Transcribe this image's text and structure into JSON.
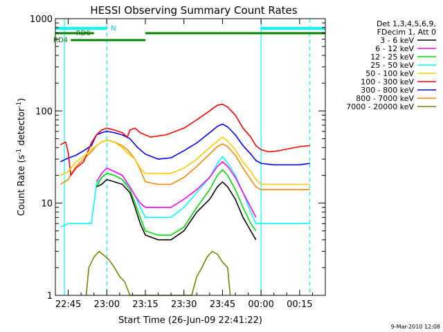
{
  "chart_data": {
    "type": "line",
    "title": "HESSI Observing Summary Count Rates",
    "xlabel": "Start Time (26-Jun-09 22:41:22)",
    "ylabel_main": "Count Rate (s",
    "ylabel_sup1": "-1",
    "ylabel_mid": " detector",
    "ylabel_sup2": "-1",
    "ylabel_end": ")",
    "y_scale": "log",
    "ylim": [
      1,
      1000
    ],
    "xlim_minutes": [
      -5,
      100
    ],
    "x_ticks": [
      {
        "t": 0,
        "label": "22:45"
      },
      {
        "t": 15,
        "label": "23:00"
      },
      {
        "t": 30,
        "label": "23:15"
      },
      {
        "t": 45,
        "label": "23:30"
      },
      {
        "t": 60,
        "label": "23:45"
      },
      {
        "t": 75,
        "label": "00:00"
      },
      {
        "t": 90,
        "label": "00:15"
      }
    ],
    "y_ticks": [
      {
        "v": 1,
        "label": "1"
      },
      {
        "v": 10,
        "label": "10"
      },
      {
        "v": 100,
        "label": "100"
      },
      {
        "v": 1000,
        "label": "1000"
      }
    ],
    "legend": {
      "header": [
        "Det 1,3,4,5,6,9,",
        "FDecim 1, Att 0"
      ],
      "position": "right"
    },
    "series": [
      {
        "name": "3 - 6 keV",
        "color": "#000000",
        "points": [
          [
            11,
            15
          ],
          [
            13,
            16
          ],
          [
            15,
            18
          ],
          [
            18,
            17
          ],
          [
            21,
            16
          ],
          [
            24,
            13
          ],
          [
            26,
            9
          ],
          [
            28,
            6
          ],
          [
            30,
            4.5
          ],
          [
            35,
            4
          ],
          [
            40,
            4
          ],
          [
            45,
            5
          ],
          [
            50,
            8
          ],
          [
            55,
            11
          ],
          [
            58,
            15
          ],
          [
            60,
            17
          ],
          [
            62,
            15
          ],
          [
            65,
            11
          ],
          [
            68,
            7
          ],
          [
            71,
            5
          ],
          [
            73,
            4
          ]
        ]
      },
      {
        "name": "6 - 12 keV",
        "color": "#ff00ff",
        "points": [
          [
            11,
            17
          ],
          [
            13,
            21
          ],
          [
            15,
            24
          ],
          [
            18,
            22
          ],
          [
            21,
            20
          ],
          [
            24,
            15
          ],
          [
            26,
            12
          ],
          [
            28,
            10
          ],
          [
            30,
            9
          ],
          [
            35,
            9
          ],
          [
            40,
            9
          ],
          [
            45,
            11
          ],
          [
            50,
            14
          ],
          [
            55,
            19
          ],
          [
            58,
            25
          ],
          [
            60,
            28
          ],
          [
            62,
            25
          ],
          [
            65,
            19
          ],
          [
            68,
            13
          ],
          [
            71,
            9
          ],
          [
            73,
            7
          ]
        ]
      },
      {
        "name": "12 - 25 keV",
        "color": "#00dd00",
        "points": [
          [
            11,
            15
          ],
          [
            13,
            19
          ],
          [
            15,
            21
          ],
          [
            18,
            20
          ],
          [
            21,
            18
          ],
          [
            24,
            14
          ],
          [
            26,
            10
          ],
          [
            28,
            7
          ],
          [
            30,
            5
          ],
          [
            35,
            4.5
          ],
          [
            40,
            4.5
          ],
          [
            45,
            5.5
          ],
          [
            50,
            9
          ],
          [
            55,
            14
          ],
          [
            58,
            20
          ],
          [
            60,
            23
          ],
          [
            62,
            20
          ],
          [
            65,
            14
          ],
          [
            68,
            9
          ],
          [
            71,
            6
          ],
          [
            73,
            5
          ]
        ]
      },
      {
        "name": "25 - 50 keV",
        "color": "#00ffff",
        "points": [
          [
            -3,
            5.5
          ],
          [
            0,
            6
          ],
          [
            4,
            6
          ],
          [
            7,
            6
          ],
          [
            9,
            6
          ],
          [
            11,
            16
          ],
          [
            13,
            19
          ],
          [
            15,
            21
          ],
          [
            18,
            20
          ],
          [
            21,
            18
          ],
          [
            24,
            15
          ],
          [
            26,
            12
          ],
          [
            28,
            9
          ],
          [
            30,
            7
          ],
          [
            35,
            7
          ],
          [
            40,
            7
          ],
          [
            45,
            9
          ],
          [
            50,
            13
          ],
          [
            55,
            19
          ],
          [
            58,
            27
          ],
          [
            60,
            32
          ],
          [
            62,
            27
          ],
          [
            65,
            20
          ],
          [
            68,
            13
          ],
          [
            71,
            8
          ],
          [
            73,
            6
          ],
          [
            75,
            6
          ],
          [
            80,
            6
          ],
          [
            85,
            6
          ],
          [
            90,
            6
          ],
          [
            94,
            6
          ]
        ]
      },
      {
        "name": "50 - 100 keV",
        "color": "#ffcc00",
        "points": [
          [
            -3,
            20
          ],
          [
            0,
            22
          ],
          [
            3,
            28
          ],
          [
            6,
            32
          ],
          [
            9,
            38
          ],
          [
            11,
            42
          ],
          [
            13,
            46
          ],
          [
            15,
            48
          ],
          [
            18,
            46
          ],
          [
            21,
            40
          ],
          [
            23,
            35
          ],
          [
            26,
            30
          ],
          [
            28,
            24
          ],
          [
            30,
            21
          ],
          [
            35,
            21
          ],
          [
            40,
            21
          ],
          [
            45,
            24
          ],
          [
            50,
            30
          ],
          [
            55,
            40
          ],
          [
            58,
            47
          ],
          [
            60,
            52
          ],
          [
            62,
            47
          ],
          [
            65,
            38
          ],
          [
            68,
            28
          ],
          [
            71,
            22
          ],
          [
            73,
            18
          ],
          [
            75,
            16
          ],
          [
            80,
            16
          ],
          [
            85,
            16
          ],
          [
            90,
            16
          ],
          [
            94,
            16
          ]
        ]
      },
      {
        "name": "100 - 300 keV",
        "color": "#ff0000",
        "points": [
          [
            -3,
            43
          ],
          [
            -1,
            46
          ],
          [
            0,
            35
          ],
          [
            1,
            20
          ],
          [
            3,
            24
          ],
          [
            6,
            28
          ],
          [
            9,
            45
          ],
          [
            11,
            55
          ],
          [
            13,
            62
          ],
          [
            15,
            65
          ],
          [
            18,
            62
          ],
          [
            21,
            58
          ],
          [
            23,
            52
          ],
          [
            24,
            62
          ],
          [
            26,
            65
          ],
          [
            28,
            58
          ],
          [
            32,
            52
          ],
          [
            38,
            55
          ],
          [
            45,
            65
          ],
          [
            50,
            80
          ],
          [
            55,
            100
          ],
          [
            58,
            115
          ],
          [
            60,
            118
          ],
          [
            62,
            110
          ],
          [
            65,
            90
          ],
          [
            68,
            65
          ],
          [
            71,
            52
          ],
          [
            73,
            42
          ],
          [
            75,
            38
          ],
          [
            78,
            36
          ],
          [
            82,
            37
          ],
          [
            86,
            39
          ],
          [
            90,
            41
          ],
          [
            94,
            42
          ]
        ]
      },
      {
        "name": "300 - 800 keV",
        "color": "#0000ff",
        "points": [
          [
            -3,
            28
          ],
          [
            -1,
            30
          ],
          [
            3,
            33
          ],
          [
            6,
            37
          ],
          [
            9,
            42
          ],
          [
            11,
            55
          ],
          [
            13,
            58
          ],
          [
            15,
            60
          ],
          [
            18,
            58
          ],
          [
            21,
            55
          ],
          [
            24,
            50
          ],
          [
            27,
            40
          ],
          [
            30,
            34
          ],
          [
            35,
            30
          ],
          [
            40,
            31
          ],
          [
            45,
            37
          ],
          [
            50,
            45
          ],
          [
            55,
            58
          ],
          [
            58,
            68
          ],
          [
            60,
            72
          ],
          [
            62,
            67
          ],
          [
            65,
            55
          ],
          [
            68,
            42
          ],
          [
            71,
            34
          ],
          [
            73,
            29
          ],
          [
            75,
            27
          ],
          [
            80,
            26
          ],
          [
            85,
            26
          ],
          [
            90,
            26
          ],
          [
            94,
            27
          ]
        ]
      },
      {
        "name": "800 - 7000 keV",
        "color": "#ff8800",
        "points": [
          [
            -3,
            16
          ],
          [
            0,
            18
          ],
          [
            3,
            25
          ],
          [
            6,
            30
          ],
          [
            9,
            36
          ],
          [
            11,
            42
          ],
          [
            13,
            46
          ],
          [
            15,
            48
          ],
          [
            18,
            46
          ],
          [
            21,
            42
          ],
          [
            23,
            38
          ],
          [
            26,
            30
          ],
          [
            28,
            23
          ],
          [
            30,
            17
          ],
          [
            35,
            16
          ],
          [
            40,
            16
          ],
          [
            45,
            19
          ],
          [
            50,
            25
          ],
          [
            55,
            34
          ],
          [
            58,
            41
          ],
          [
            60,
            44
          ],
          [
            62,
            41
          ],
          [
            65,
            33
          ],
          [
            68,
            24
          ],
          [
            71,
            18
          ],
          [
            73,
            15
          ],
          [
            75,
            14
          ],
          [
            80,
            14
          ],
          [
            85,
            14
          ],
          [
            90,
            14
          ],
          [
            94,
            14
          ]
        ]
      },
      {
        "name": "7000 - 20000 keV",
        "color": "#808000",
        "points": [
          [
            7,
            1
          ],
          [
            8,
            2
          ],
          [
            10,
            2.6
          ],
          [
            12,
            3
          ],
          [
            14,
            2.7
          ],
          [
            16,
            2.4
          ],
          [
            18,
            2
          ],
          [
            20,
            1.6
          ],
          [
            22,
            1.4
          ],
          [
            24,
            1
          ],
          [
            48,
            1
          ],
          [
            50,
            1.6
          ],
          [
            52,
            2
          ],
          [
            54,
            2.6
          ],
          [
            56,
            3
          ],
          [
            58,
            2.8
          ],
          [
            60,
            2.3
          ],
          [
            62,
            2
          ],
          [
            63,
            1
          ]
        ]
      }
    ],
    "state_bars": {
      "labels": {
        "rd0": "RD0",
        "rd4": "RD4",
        "n": "N"
      },
      "rd0": [
        [
          -5,
          10
        ],
        [
          30,
          100
        ]
      ],
      "rd4": [
        [
          1,
          30
        ]
      ],
      "n": [
        [
          -5,
          15
        ],
        [
          75,
          100
        ]
      ]
    },
    "vlines": [
      {
        "t": -1.5,
        "style": "solid",
        "color": "#00ffff"
      },
      {
        "t": 15,
        "style": "dashed",
        "color": "#00ffff"
      },
      {
        "t": 75,
        "style": "solid",
        "color": "#00ffff"
      },
      {
        "t": 94,
        "style": "dashed",
        "color": "#00ffff"
      }
    ]
  },
  "footer": {
    "stamp": "9-Mar-2010 12:08"
  }
}
